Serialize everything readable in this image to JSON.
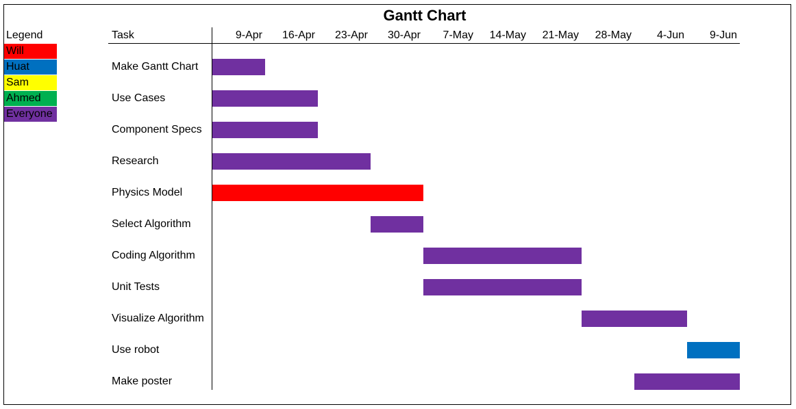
{
  "chart_data": {
    "type": "gantt",
    "title": "Gantt Chart",
    "legend_title": "Legend",
    "task_header": "Task",
    "legend": [
      {
        "name": "Will",
        "color": "#ff0000"
      },
      {
        "name": "Huat",
        "color": "#0070c0"
      },
      {
        "name": "Sam",
        "color": "#ffff00"
      },
      {
        "name": "Ahmed",
        "color": "#00b050"
      },
      {
        "name": "Everyone",
        "color": "#7030a0"
      }
    ],
    "dates": [
      "9-Apr",
      "16-Apr",
      "23-Apr",
      "30-Apr",
      "7-May",
      "14-May",
      "21-May",
      "28-May",
      "4-Jun",
      "9-Jun"
    ],
    "tasks": [
      {
        "name": "Make Gantt Chart",
        "start": "2-Apr",
        "end": "9-Apr",
        "owner": "Everyone"
      },
      {
        "name": "Use Cases",
        "start": "2-Apr",
        "end": "16-Apr",
        "owner": "Everyone"
      },
      {
        "name": "Component Specs",
        "start": "2-Apr",
        "end": "16-Apr",
        "owner": "Everyone"
      },
      {
        "name": "Research",
        "start": "2-Apr",
        "end": "23-Apr",
        "owner": "Everyone"
      },
      {
        "name": "Physics Model",
        "start": "2-Apr",
        "end": "30-Apr",
        "owner": "Will"
      },
      {
        "name": "Select Algorithm",
        "start": "23-Apr",
        "end": "30-Apr",
        "owner": "Everyone"
      },
      {
        "name": "Coding Algorithm",
        "start": "30-Apr",
        "end": "21-May",
        "owner": "Everyone"
      },
      {
        "name": "Unit Tests",
        "start": "30-Apr",
        "end": "21-May",
        "owner": "Everyone"
      },
      {
        "name": "Visualize Algorithm",
        "start": "21-May",
        "end": "4-Jun",
        "owner": "Everyone"
      },
      {
        "name": "Use robot",
        "start": "4-Jun",
        "end": "9-Jun",
        "owner": "Huat"
      },
      {
        "name": "Make poster",
        "start": "28-May",
        "end": "9-Jun",
        "owner": "Everyone"
      }
    ]
  }
}
